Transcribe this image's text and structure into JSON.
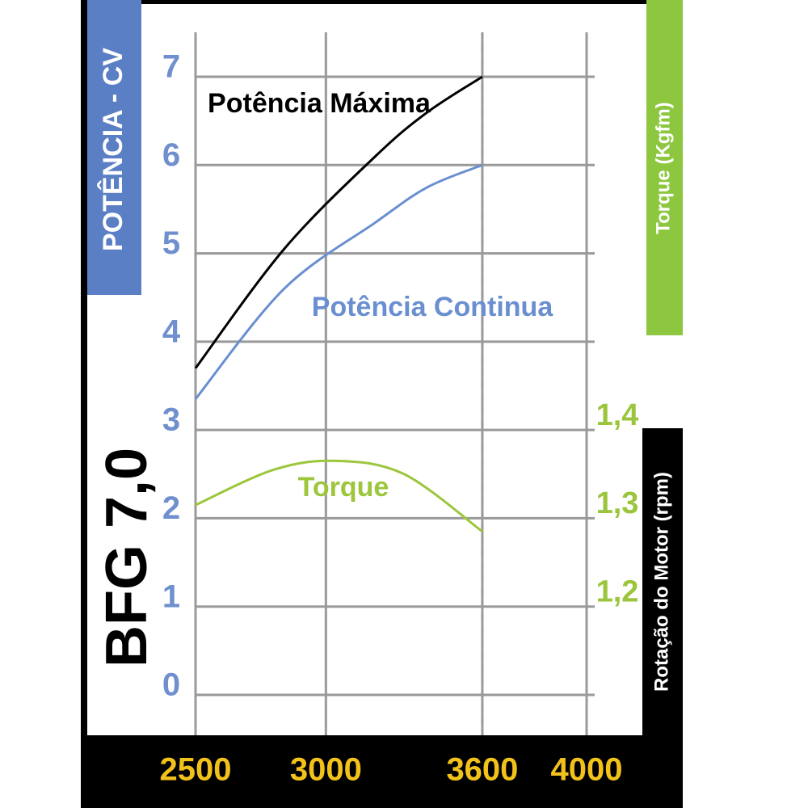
{
  "chart_data": {
    "type": "line",
    "title": "BFG 7,0",
    "y_label": "POTÊNCIA  - CV",
    "y2_label": "Torque (Kgfm)",
    "x_label": "Rotação  do Motor (rpm)",
    "xlim": [
      2500,
      4000
    ],
    "xticks": [
      2500,
      3000,
      3600,
      4000
    ],
    "ylim": [
      0,
      7
    ],
    "yticks": [
      0,
      1,
      2,
      3,
      4,
      5,
      6,
      7
    ],
    "y2lim": [
      1.085,
      1.785
    ],
    "y2ticks": [
      {
        "value": 1.2,
        "label": "1,2"
      },
      {
        "value": 1.3,
        "label": "1,3"
      },
      {
        "value": 1.4,
        "label": "1,4"
      }
    ],
    "grid": true,
    "series": [
      {
        "name": "Potência Máxima",
        "color": "#000000",
        "x": [
          2500,
          2840,
          3190,
          3390,
          3600
        ],
        "values": [
          3.7,
          5.05,
          6.1,
          6.6,
          7.0
        ]
      },
      {
        "name": "Potência Continua",
        "color": "#6a8fd0",
        "x": [
          2500,
          2840,
          3190,
          3390,
          3600
        ],
        "values": [
          3.35,
          4.6,
          5.35,
          5.75,
          6.0
        ]
      },
      {
        "name": "Torque",
        "color": "#9cc63c",
        "axis": "y2",
        "x": [
          2500,
          2800,
          3040,
          3300,
          3600
        ],
        "values": [
          1.3,
          1.34,
          1.35,
          1.335,
          1.27
        ]
      }
    ]
  }
}
